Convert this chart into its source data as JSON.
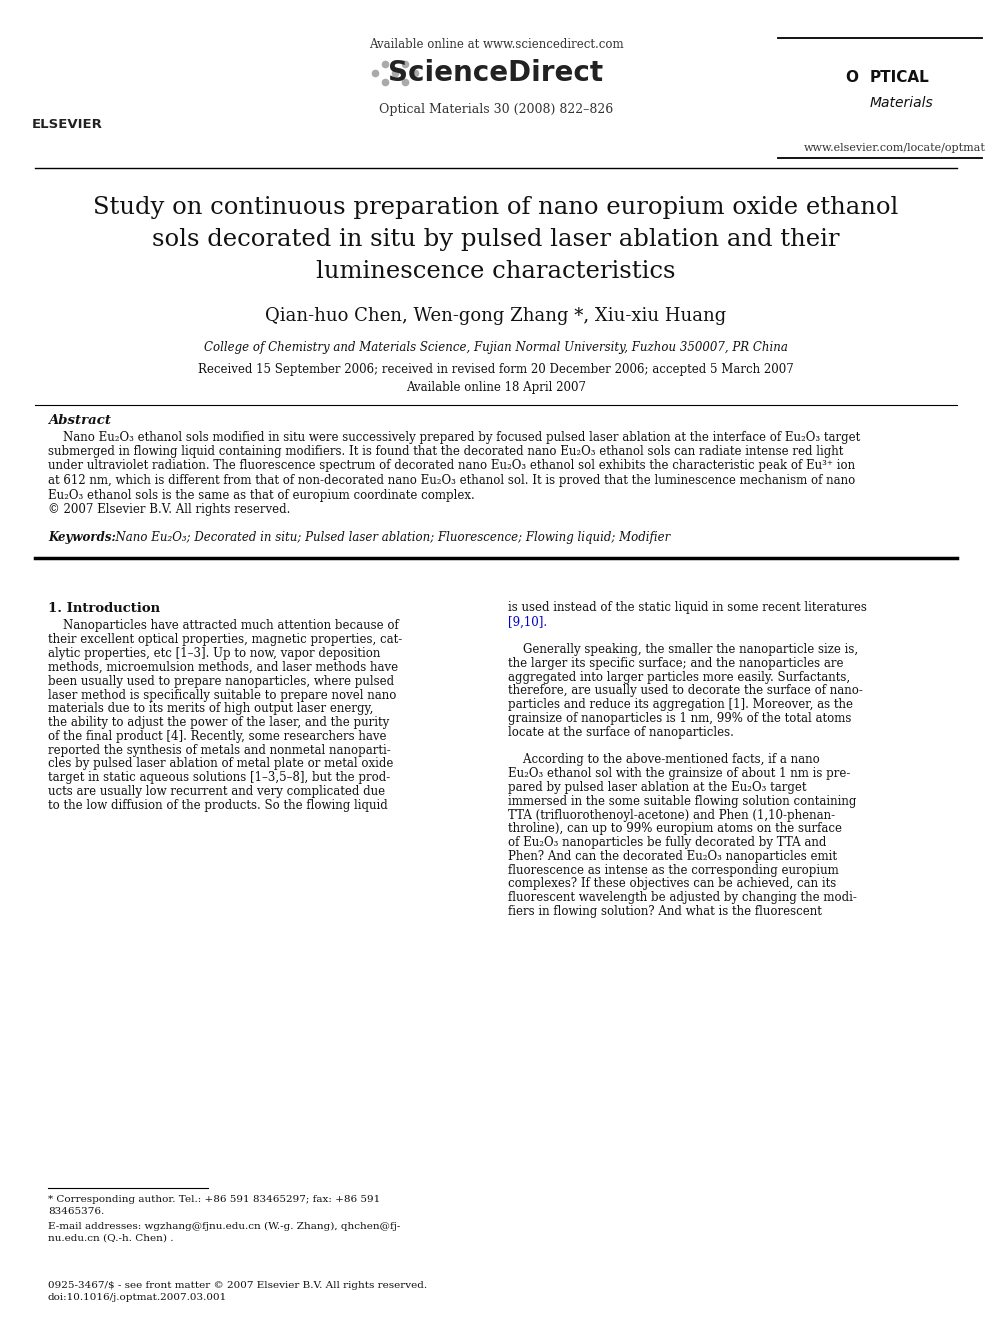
{
  "bg_color": "#ffffff",
  "available_online": "Available online at www.sciencedirect.com",
  "journal_line": "Optical Materials 30 (2008) 822–826",
  "website": "www.elsevier.com/locate/optmat",
  "title": "Study on continuous preparation of nano europium oxide ethanol\nsols decorated in situ by pulsed laser ablation and their\nluminescence characteristics",
  "authors": "Qian-huo Chen, Wen-gong Zhang *, Xiu-xiu Huang",
  "affiliation": "College of Chemistry and Materials Science, Fujian Normal University, Fuzhou 350007, PR China",
  "received": "Received 15 September 2006; received in revised form 20 December 2006; accepted 5 March 2007",
  "available": "Available online 18 April 2007",
  "abstract_heading": "Abstract",
  "abstract_lines": [
    "    Nano Eu₂O₃ ethanol sols modified in situ were successively prepared by focused pulsed laser ablation at the interface of Eu₂O₃ target",
    "submerged in flowing liquid containing modifiers. It is found that the decorated nano Eu₂O₃ ethanol sols can radiate intense red light",
    "under ultraviolet radiation. The fluorescence spectrum of decorated nano Eu₂O₃ ethanol sol exhibits the characteristic peak of Eu³⁺ ion",
    "at 612 nm, which is different from that of non-decorated nano Eu₂O₃ ethanol sol. It is proved that the luminescence mechanism of nano",
    "Eu₂O₃ ethanol sols is the same as that of europium coordinate complex.",
    "© 2007 Elsevier B.V. All rights reserved."
  ],
  "keywords_label": "Keywords:",
  "keywords_text": "  Nano Eu₂O₃; Decorated in situ; Pulsed laser ablation; Fluorescence; Flowing liquid; Modifier",
  "section1_heading": "1. Introduction",
  "section1_col1_lines": [
    "    Nanoparticles have attracted much attention because of",
    "their excellent optical properties, magnetic properties, cat-",
    "alytic properties, etc [1–3]. Up to now, vapor deposition",
    "methods, microemulsion methods, and laser methods have",
    "been usually used to prepare nanoparticles, where pulsed",
    "laser method is specifically suitable to prepare novel nano",
    "materials due to its merits of high output laser energy,",
    "the ability to adjust the power of the laser, and the purity",
    "of the final product [4]. Recently, some researchers have",
    "reported the synthesis of metals and nonmetal nanoparti-",
    "cles by pulsed laser ablation of metal plate or metal oxide",
    "target in static aqueous solutions [1–3,5–8], but the prod-",
    "ucts are usually low recurrent and very complicated due",
    "to the low diffusion of the products. So the flowing liquid"
  ],
  "section1_col2_lines": [
    "is used instead of the static liquid in some recent literatures",
    "[9,10].",
    "",
    "    Generally speaking, the smaller the nanoparticle size is,",
    "the larger its specific surface; and the nanoparticles are",
    "aggregated into larger particles more easily. Surfactants,",
    "therefore, are usually used to decorate the surface of nano-",
    "particles and reduce its aggregation [1]. Moreover, as the",
    "grainsize of nanoparticles is 1 nm, 99% of the total atoms",
    "locate at the surface of nanoparticles.",
    "",
    "    According to the above-mentioned facts, if a nano",
    "Eu₂O₃ ethanol sol with the grainsize of about 1 nm is pre-",
    "pared by pulsed laser ablation at the Eu₂O₃ target",
    "immersed in the some suitable flowing solution containing",
    "TTA (trifluorothenoyl-acetone) and Phen (1,10-phenan-",
    "throline), can up to 99% europium atoms on the surface",
    "of Eu₂O₃ nanoparticles be fully decorated by TTA and",
    "Phen? And can the decorated Eu₂O₃ nanoparticles emit",
    "fluorescence as intense as the corresponding europium",
    "complexes? If these objectives can be achieved, can its",
    "fluorescent wavelength be adjusted by changing the modi-",
    "fiers in flowing solution? And what is the fluorescent"
  ],
  "footnote1_lines": [
    "* Corresponding author. Tel.: +86 591 83465297; fax: +86 591",
    "83465376."
  ],
  "footnote2_lines": [
    "E-mail addresses: wgzhang@fjnu.edu.cn (W.-g. Zhang), qhchen@fj-",
    "nu.edu.cn (Q.-h. Chen) ."
  ],
  "footer_lines": [
    "0925-3467/$ - see front matter © 2007 Elsevier B.V. All rights reserved.",
    "doi:10.1016/j.optmat.2007.03.001"
  ]
}
